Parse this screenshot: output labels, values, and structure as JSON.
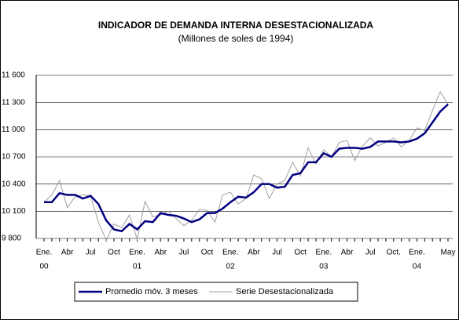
{
  "chart_data": {
    "type": "line",
    "title": "INDICADOR DE DEMANDA INTERNA DESESTACIONALIZADA",
    "subtitle": "(Millones de soles de 1994)",
    "categories": [
      "Ene.",
      null,
      null,
      "Abr",
      null,
      null,
      "Jul",
      null,
      null,
      "Oct",
      null,
      null,
      "Ene.",
      null,
      null,
      "Abr",
      null,
      null,
      "Jul",
      null,
      null,
      "Oct",
      null,
      null,
      "Ene.",
      null,
      null,
      "Abr",
      null,
      null,
      "Jul",
      null,
      null,
      "Oct",
      null,
      null,
      "Ene.",
      null,
      null,
      "Abr",
      null,
      null,
      "Jul",
      null,
      null,
      "Oct.",
      null,
      null,
      "Ene.",
      null,
      null,
      null,
      "May"
    ],
    "category_years": [
      "00",
      null,
      null,
      null,
      null,
      null,
      null,
      null,
      null,
      null,
      null,
      null,
      "01",
      null,
      null,
      null,
      null,
      null,
      null,
      null,
      null,
      null,
      null,
      null,
      "02",
      null,
      null,
      null,
      null,
      null,
      null,
      null,
      null,
      null,
      null,
      null,
      "03",
      null,
      null,
      null,
      null,
      null,
      null,
      null,
      null,
      null,
      null,
      null,
      "04",
      null,
      null,
      null,
      null
    ],
    "series": [
      {
        "name": "Promedio móv. 3 meses",
        "color": "#000080",
        "values": [
          10200,
          10200,
          10300,
          10280,
          10280,
          10240,
          10270,
          10180,
          10000,
          9900,
          9880,
          9960,
          9900,
          9990,
          9980,
          10080,
          10060,
          10050,
          10020,
          9980,
          10010,
          10080,
          10080,
          10130,
          10200,
          10260,
          10250,
          10310,
          10400,
          10400,
          10360,
          10370,
          10500,
          10520,
          10640,
          10640,
          10740,
          10700,
          10790,
          10800,
          10800,
          10790,
          10810,
          10870,
          10870,
          10870,
          10860,
          10870,
          10900,
          10960,
          11080,
          11200,
          11280
        ]
      },
      {
        "name": "Serie Desestacionalizada",
        "color": "#a0a0a0",
        "values": [
          10200,
          10280,
          10440,
          10140,
          10260,
          10280,
          10270,
          9980,
          9780,
          9960,
          9920,
          10060,
          9790,
          10210,
          10040,
          10060,
          10100,
          10020,
          9940,
          10000,
          10120,
          10110,
          9980,
          10280,
          10310,
          10180,
          10240,
          10500,
          10460,
          10240,
          10400,
          10440,
          10640,
          10490,
          10800,
          10620,
          10780,
          10700,
          10860,
          10880,
          10660,
          10820,
          10910,
          10820,
          10860,
          10910,
          10810,
          10880,
          11020,
          10990,
          11210,
          11420,
          11280
        ]
      }
    ],
    "ylim": [
      9800,
      11600
    ],
    "yticks": [
      {
        "value": 9800,
        "label": "9 800"
      },
      {
        "value": 10100,
        "label": "10 100"
      },
      {
        "value": 10400,
        "label": "10 400"
      },
      {
        "value": 10700,
        "label": "10 700"
      },
      {
        "value": 11000,
        "label": "11 000"
      },
      {
        "value": 11300,
        "label": "11 300"
      },
      {
        "value": 11600,
        "label": "11 600"
      }
    ],
    "grid": true
  }
}
